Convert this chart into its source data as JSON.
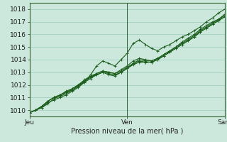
{
  "title": "",
  "xlabel": "Pression niveau de la mer( hPa )",
  "ylabel": "",
  "background_color": "#cce8dd",
  "plot_bg_color": "#cce8dd",
  "grid_color": "#99ccbb",
  "line_color": "#1a5c1a",
  "vline_color": "#336633",
  "ylim": [
    1009.5,
    1018.5
  ],
  "xlim": [
    0,
    48
  ],
  "xtick_positions": [
    0,
    24,
    48
  ],
  "xtick_labels": [
    "Jeu",
    "Ven",
    "Sam"
  ],
  "ytick_positions": [
    1010,
    1011,
    1012,
    1013,
    1014,
    1015,
    1016,
    1017,
    1018
  ],
  "series": [
    [
      1009.8,
      1010.0,
      1010.2,
      1010.6,
      1010.8,
      1011.0,
      1011.2,
      1011.5,
      1011.8,
      1012.2,
      1012.8,
      1013.5,
      1013.9,
      1013.7,
      1013.5,
      1014.0,
      1014.5,
      1015.3,
      1015.55,
      1015.2,
      1014.9,
      1014.7,
      1015.0,
      1015.2,
      1015.5,
      1015.8,
      1016.0,
      1016.3,
      1016.6,
      1017.0,
      1017.3,
      1017.7,
      1018.0
    ],
    [
      1009.8,
      1010.0,
      1010.3,
      1010.7,
      1011.0,
      1011.2,
      1011.4,
      1011.6,
      1011.9,
      1012.3,
      1012.6,
      1012.9,
      1013.1,
      1013.0,
      1012.9,
      1013.2,
      1013.5,
      1013.9,
      1014.1,
      1014.0,
      1013.9,
      1014.1,
      1014.4,
      1014.7,
      1015.0,
      1015.4,
      1015.7,
      1016.0,
      1016.4,
      1016.7,
      1017.0,
      1017.2,
      1017.5
    ],
    [
      1009.8,
      1010.0,
      1010.3,
      1010.7,
      1011.0,
      1011.2,
      1011.4,
      1011.7,
      1012.0,
      1012.3,
      1012.6,
      1012.8,
      1013.0,
      1012.9,
      1012.8,
      1013.0,
      1013.3,
      1013.6,
      1013.8,
      1013.8,
      1013.8,
      1014.0,
      1014.3,
      1014.6,
      1014.9,
      1015.2,
      1015.5,
      1015.8,
      1016.2,
      1016.5,
      1016.8,
      1017.1,
      1017.4
    ],
    [
      1009.8,
      1010.0,
      1010.3,
      1010.7,
      1011.0,
      1011.2,
      1011.5,
      1011.7,
      1012.0,
      1012.4,
      1012.7,
      1012.9,
      1013.1,
      1013.0,
      1012.9,
      1013.1,
      1013.4,
      1013.7,
      1014.0,
      1013.9,
      1013.9,
      1014.1,
      1014.4,
      1014.7,
      1015.0,
      1015.3,
      1015.6,
      1015.9,
      1016.3,
      1016.6,
      1016.9,
      1017.2,
      1017.6
    ],
    [
      1009.8,
      1010.0,
      1010.2,
      1010.5,
      1010.9,
      1011.1,
      1011.3,
      1011.6,
      1011.9,
      1012.2,
      1012.5,
      1012.8,
      1013.0,
      1012.8,
      1012.7,
      1013.0,
      1013.3,
      1013.7,
      1013.9,
      1013.8,
      1013.8,
      1014.0,
      1014.3,
      1014.6,
      1014.9,
      1015.2,
      1015.5,
      1015.8,
      1016.2,
      1016.5,
      1016.8,
      1017.1,
      1017.4
    ]
  ],
  "marker": "+",
  "markersize": 3,
  "linewidth": 0.8,
  "xlabel_fontsize": 7,
  "tick_fontsize": 6.5
}
